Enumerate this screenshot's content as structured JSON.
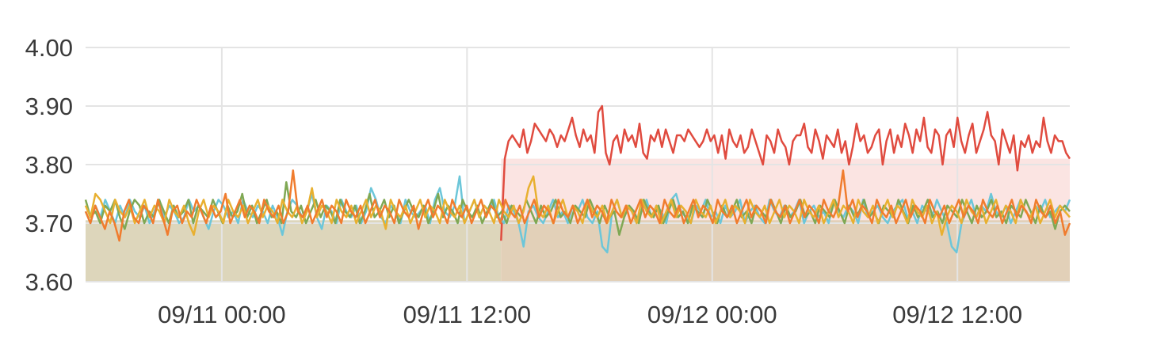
{
  "chart_data": {
    "type": "line",
    "title": "",
    "xlabel": "",
    "ylabel": "",
    "ylim": [
      3.6,
      4.0
    ],
    "y_ticks": [
      {
        "value": 3.6,
        "label": "3.60"
      },
      {
        "value": 3.7,
        "label": "3.70"
      },
      {
        "value": 3.8,
        "label": "3.80"
      },
      {
        "value": 3.9,
        "label": "3.90"
      },
      {
        "value": 4.0,
        "label": "4.00"
      }
    ],
    "x_range": [
      "09/10 17:20",
      "09/12 17:30"
    ],
    "x_ticks": [
      {
        "value": "09/11 00:00",
        "label": "09/11 00:00"
      },
      {
        "value": "09/11 12:00",
        "label": "09/11 12:00"
      },
      {
        "value": "09/12 00:00",
        "label": "09/12 00:00"
      },
      {
        "value": "09/12 12:00",
        "label": "09/12 12:00"
      }
    ],
    "grid": true,
    "legend": "none",
    "series": [
      {
        "color": "#e04b3f",
        "start": "09/11 13:40",
        "end": "09/12 17:30",
        "values": [
          3.67,
          3.81,
          3.84,
          3.85,
          3.84,
          3.83,
          3.86,
          3.82,
          3.84,
          3.87,
          3.86,
          3.85,
          3.84,
          3.86,
          3.85,
          3.83,
          3.85,
          3.84,
          3.86,
          3.88,
          3.85,
          3.83,
          3.86,
          3.84,
          3.85,
          3.82,
          3.89,
          3.9,
          3.82,
          3.8,
          3.84,
          3.85,
          3.82,
          3.86,
          3.84,
          3.85,
          3.83,
          3.87,
          3.82,
          3.81,
          3.85,
          3.84,
          3.86,
          3.83,
          3.86,
          3.84,
          3.82,
          3.85,
          3.85,
          3.84,
          3.86,
          3.85,
          3.84,
          3.83,
          3.84,
          3.86,
          3.84,
          3.85,
          3.82,
          3.85,
          3.81,
          3.86,
          3.84,
          3.83,
          3.85,
          3.82,
          3.83,
          3.86,
          3.84,
          3.82,
          3.8,
          3.85,
          3.84,
          3.82,
          3.86,
          3.84,
          3.83,
          3.8,
          3.84,
          3.85,
          3.85,
          3.87,
          3.83,
          3.82,
          3.86,
          3.84,
          3.81,
          3.85,
          3.84,
          3.83,
          3.86,
          3.82,
          3.84,
          3.8,
          3.83,
          3.87,
          3.84,
          3.85,
          3.82,
          3.83,
          3.85,
          3.86,
          3.8,
          3.84,
          3.86,
          3.82,
          3.85,
          3.83,
          3.87,
          3.85,
          3.82,
          3.86,
          3.84,
          3.88,
          3.83,
          3.82,
          3.86,
          3.85,
          3.8,
          3.85,
          3.86,
          3.83,
          3.88,
          3.84,
          3.82,
          3.85,
          3.87,
          3.82,
          3.84,
          3.86,
          3.89,
          3.85,
          3.84,
          3.8,
          3.86,
          3.84,
          3.82,
          3.85,
          3.79,
          3.84,
          3.83,
          3.85,
          3.82,
          3.84,
          3.83,
          3.88,
          3.84,
          3.82,
          3.85,
          3.84,
          3.84,
          3.82,
          3.81
        ]
      },
      {
        "color": "#6cc6d9",
        "start": "09/10 17:20",
        "end": "09/12 17:30",
        "values": [
          3.72,
          3.7,
          3.73,
          3.71,
          3.74,
          3.72,
          3.7,
          3.73,
          3.71,
          3.74,
          3.72,
          3.71,
          3.73,
          3.7,
          3.72,
          3.74,
          3.71,
          3.73,
          3.72,
          3.7,
          3.71,
          3.74,
          3.72,
          3.73,
          3.71,
          3.69,
          3.72,
          3.74,
          3.73,
          3.71,
          3.72,
          3.7,
          3.74,
          3.72,
          3.71,
          3.73,
          3.72,
          3.7,
          3.73,
          3.71,
          3.68,
          3.72,
          3.74,
          3.73,
          3.71,
          3.72,
          3.75,
          3.71,
          3.69,
          3.73,
          3.72,
          3.7,
          3.74,
          3.72,
          3.71,
          3.73,
          3.7,
          3.72,
          3.76,
          3.74,
          3.71,
          3.7,
          3.73,
          3.72,
          3.7,
          3.74,
          3.72,
          3.71,
          3.72,
          3.73,
          3.7,
          3.74,
          3.76,
          3.72,
          3.71,
          3.73,
          3.78,
          3.7,
          3.72,
          3.74,
          3.71,
          3.73,
          3.72,
          3.74,
          3.71,
          3.7,
          3.73,
          3.72,
          3.7,
          3.66,
          3.72,
          3.73,
          3.71,
          3.7,
          3.72,
          3.74,
          3.71,
          3.72,
          3.7,
          3.73,
          3.72,
          3.74,
          3.71,
          3.7,
          3.72,
          3.66,
          3.65,
          3.72,
          3.74,
          3.71,
          3.73,
          3.72,
          3.7,
          3.72,
          3.74,
          3.71,
          3.73,
          3.72,
          3.7,
          3.74,
          3.75,
          3.72,
          3.71,
          3.7,
          3.73,
          3.72,
          3.74,
          3.71,
          3.72,
          3.7,
          3.73,
          3.71,
          3.72,
          3.74,
          3.7,
          3.72,
          3.73,
          3.71,
          3.7,
          3.74,
          3.72,
          3.71,
          3.73,
          3.71,
          3.72,
          3.74,
          3.7,
          3.72,
          3.73,
          3.71,
          3.72,
          3.7,
          3.74,
          3.72,
          3.71,
          3.73,
          3.72,
          3.7,
          3.74,
          3.71,
          3.72,
          3.73,
          3.71,
          3.7,
          3.72,
          3.73,
          3.74,
          3.71,
          3.72,
          3.7,
          3.73,
          3.72,
          3.71,
          3.74,
          3.72,
          3.7,
          3.66,
          3.65,
          3.7,
          3.72,
          3.74,
          3.71,
          3.73,
          3.72,
          3.75,
          3.72,
          3.71,
          3.73,
          3.7,
          3.72,
          3.74,
          3.72,
          3.71,
          3.73,
          3.72,
          3.74,
          3.71,
          3.72,
          3.73,
          3.72,
          3.74
        ]
      },
      {
        "color": "#7fa854",
        "start": "09/10 17:20",
        "end": "09/12 17:30",
        "values": [
          3.74,
          3.71,
          3.72,
          3.7,
          3.73,
          3.72,
          3.74,
          3.71,
          3.69,
          3.72,
          3.74,
          3.73,
          3.7,
          3.72,
          3.71,
          3.74,
          3.72,
          3.7,
          3.73,
          3.71,
          3.72,
          3.74,
          3.7,
          3.73,
          3.72,
          3.71,
          3.74,
          3.72,
          3.7,
          3.73,
          3.71,
          3.72,
          3.75,
          3.71,
          3.73,
          3.7,
          3.72,
          3.74,
          3.71,
          3.72,
          3.7,
          3.77,
          3.72,
          3.71,
          3.73,
          3.7,
          3.72,
          3.74,
          3.71,
          3.73,
          3.72,
          3.7,
          3.74,
          3.72,
          3.71,
          3.73,
          3.7,
          3.72,
          3.75,
          3.71,
          3.72,
          3.74,
          3.71,
          3.73,
          3.7,
          3.72,
          3.74,
          3.72,
          3.71,
          3.73,
          3.7,
          3.72,
          3.75,
          3.71,
          3.73,
          3.72,
          3.7,
          3.74,
          3.72,
          3.71,
          3.73,
          3.7,
          3.72,
          3.74,
          3.71,
          3.72,
          3.7,
          3.73,
          3.72,
          3.71,
          3.74,
          3.72,
          3.7,
          3.73,
          3.71,
          3.72,
          3.74,
          3.71,
          3.72,
          3.7,
          3.73,
          3.72,
          3.71,
          3.74,
          3.72,
          3.7,
          3.73,
          3.71,
          3.72,
          3.68,
          3.71,
          3.73,
          3.72,
          3.7,
          3.74,
          3.72,
          3.71,
          3.73,
          3.7,
          3.72,
          3.74,
          3.71,
          3.72,
          3.7,
          3.73,
          3.72,
          3.71,
          3.74,
          3.72,
          3.7,
          3.73,
          3.71,
          3.72,
          3.74,
          3.71,
          3.72,
          3.7,
          3.73,
          3.72,
          3.71,
          3.74,
          3.72,
          3.7,
          3.73,
          3.71,
          3.72,
          3.74,
          3.71,
          3.72,
          3.7,
          3.73,
          3.72,
          3.71,
          3.74,
          3.72,
          3.7,
          3.73,
          3.71,
          3.72,
          3.74,
          3.71,
          3.72,
          3.7,
          3.73,
          3.72,
          3.71,
          3.74,
          3.72,
          3.7,
          3.73,
          3.71,
          3.72,
          3.74,
          3.71,
          3.72,
          3.7,
          3.73,
          3.72,
          3.71,
          3.74,
          3.72,
          3.7,
          3.73,
          3.71,
          3.72,
          3.74,
          3.71,
          3.72,
          3.7,
          3.73,
          3.72,
          3.71,
          3.74,
          3.72,
          3.7,
          3.73,
          3.71,
          3.72,
          3.69,
          3.72,
          3.73,
          3.72
        ]
      },
      {
        "color": "#e8b030",
        "start": "09/10 17:20",
        "end": "09/12 17:30",
        "values": [
          3.73,
          3.71,
          3.75,
          3.74,
          3.72,
          3.7,
          3.74,
          3.72,
          3.71,
          3.73,
          3.7,
          3.72,
          3.74,
          3.71,
          3.73,
          3.72,
          3.7,
          3.74,
          3.72,
          3.71,
          3.73,
          3.7,
          3.68,
          3.72,
          3.74,
          3.71,
          3.73,
          3.72,
          3.7,
          3.74,
          3.72,
          3.71,
          3.73,
          3.7,
          3.72,
          3.74,
          3.71,
          3.73,
          3.72,
          3.7,
          3.74,
          3.72,
          3.71,
          3.73,
          3.7,
          3.72,
          3.76,
          3.71,
          3.73,
          3.72,
          3.7,
          3.74,
          3.72,
          3.71,
          3.73,
          3.7,
          3.72,
          3.74,
          3.71,
          3.73,
          3.72,
          3.69,
          3.74,
          3.72,
          3.71,
          3.73,
          3.7,
          3.72,
          3.74,
          3.71,
          3.73,
          3.72,
          3.7,
          3.74,
          3.72,
          3.71,
          3.73,
          3.7,
          3.72,
          3.74,
          3.71,
          3.73,
          3.72,
          3.7,
          3.74,
          3.72,
          3.71,
          3.73,
          3.7,
          3.72,
          3.76,
          3.78,
          3.72,
          3.71,
          3.73,
          3.7,
          3.72,
          3.74,
          3.71,
          3.73,
          3.72,
          3.7,
          3.74,
          3.72,
          3.71,
          3.73,
          3.7,
          3.72,
          3.74,
          3.71,
          3.73,
          3.72,
          3.7,
          3.74,
          3.72,
          3.71,
          3.73,
          3.7,
          3.72,
          3.74,
          3.71,
          3.73,
          3.72,
          3.7,
          3.74,
          3.72,
          3.71,
          3.73,
          3.7,
          3.72,
          3.74,
          3.71,
          3.73,
          3.72,
          3.7,
          3.74,
          3.72,
          3.71,
          3.73,
          3.7,
          3.72,
          3.74,
          3.71,
          3.73,
          3.72,
          3.7,
          3.74,
          3.72,
          3.71,
          3.73,
          3.7,
          3.72,
          3.74,
          3.71,
          3.73,
          3.72,
          3.7,
          3.74,
          3.72,
          3.71,
          3.73,
          3.7,
          3.72,
          3.74,
          3.71,
          3.73,
          3.72,
          3.7,
          3.74,
          3.72,
          3.71,
          3.73,
          3.7,
          3.72,
          3.68,
          3.71,
          3.73,
          3.72,
          3.7,
          3.74,
          3.72,
          3.71,
          3.73,
          3.7,
          3.72,
          3.74,
          3.71,
          3.73,
          3.72,
          3.7,
          3.74,
          3.72,
          3.71,
          3.73,
          3.7,
          3.72,
          3.74,
          3.71,
          3.73,
          3.72,
          3.71
        ]
      },
      {
        "color": "#f07c2e",
        "start": "09/10 17:20",
        "end": "09/12 17:30",
        "values": [
          3.72,
          3.7,
          3.73,
          3.71,
          3.69,
          3.72,
          3.7,
          3.67,
          3.72,
          3.74,
          3.71,
          3.7,
          3.73,
          3.72,
          3.7,
          3.74,
          3.71,
          3.68,
          3.72,
          3.73,
          3.7,
          3.72,
          3.71,
          3.74,
          3.72,
          3.7,
          3.73,
          3.71,
          3.72,
          3.75,
          3.7,
          3.72,
          3.74,
          3.71,
          3.73,
          3.72,
          3.7,
          3.74,
          3.72,
          3.71,
          3.73,
          3.7,
          3.72,
          3.79,
          3.72,
          3.71,
          3.73,
          3.7,
          3.72,
          3.74,
          3.71,
          3.73,
          3.72,
          3.7,
          3.74,
          3.72,
          3.71,
          3.73,
          3.7,
          3.72,
          3.74,
          3.71,
          3.73,
          3.72,
          3.7,
          3.74,
          3.72,
          3.71,
          3.73,
          3.69,
          3.72,
          3.74,
          3.71,
          3.73,
          3.72,
          3.7,
          3.74,
          3.72,
          3.71,
          3.73,
          3.7,
          3.72,
          3.74,
          3.71,
          3.73,
          3.72,
          3.7,
          3.74,
          3.72,
          3.71,
          3.73,
          3.7,
          3.72,
          3.74,
          3.71,
          3.73,
          3.72,
          3.7,
          3.74,
          3.72,
          3.71,
          3.73,
          3.7,
          3.72,
          3.74,
          3.71,
          3.73,
          3.72,
          3.7,
          3.74,
          3.72,
          3.71,
          3.73,
          3.7,
          3.72,
          3.74,
          3.71,
          3.73,
          3.72,
          3.7,
          3.74,
          3.72,
          3.71,
          3.73,
          3.7,
          3.72,
          3.74,
          3.71,
          3.73,
          3.72,
          3.7,
          3.74,
          3.72,
          3.71,
          3.73,
          3.7,
          3.72,
          3.74,
          3.71,
          3.73,
          3.72,
          3.7,
          3.74,
          3.72,
          3.71,
          3.73,
          3.7,
          3.72,
          3.74,
          3.71,
          3.73,
          3.72,
          3.7,
          3.74,
          3.72,
          3.71,
          3.73,
          3.79,
          3.72,
          3.74,
          3.71,
          3.73,
          3.72,
          3.7,
          3.74,
          3.72,
          3.71,
          3.73,
          3.7,
          3.72,
          3.74,
          3.71,
          3.73,
          3.72,
          3.7,
          3.74,
          3.72,
          3.71,
          3.73,
          3.7,
          3.72,
          3.74,
          3.71,
          3.73,
          3.72,
          3.7,
          3.74,
          3.72,
          3.71,
          3.73,
          3.7,
          3.72,
          3.74,
          3.71,
          3.73,
          3.72,
          3.7,
          3.74,
          3.72,
          3.71,
          3.73,
          3.7,
          3.72,
          3.68,
          3.7
        ]
      }
    ],
    "areas": [
      {
        "color": "#ddd6bb",
        "start": "09/10 17:20",
        "end": "09/11 13:40",
        "top": 3.705
      },
      {
        "color": "#fbe4e2",
        "start": "09/11 13:40",
        "end": "09/12 17:30",
        "top": 3.81
      },
      {
        "color": "#e2d0b8",
        "start": "09/11 13:40",
        "end": "09/12 17:30",
        "top": 3.705
      }
    ]
  }
}
